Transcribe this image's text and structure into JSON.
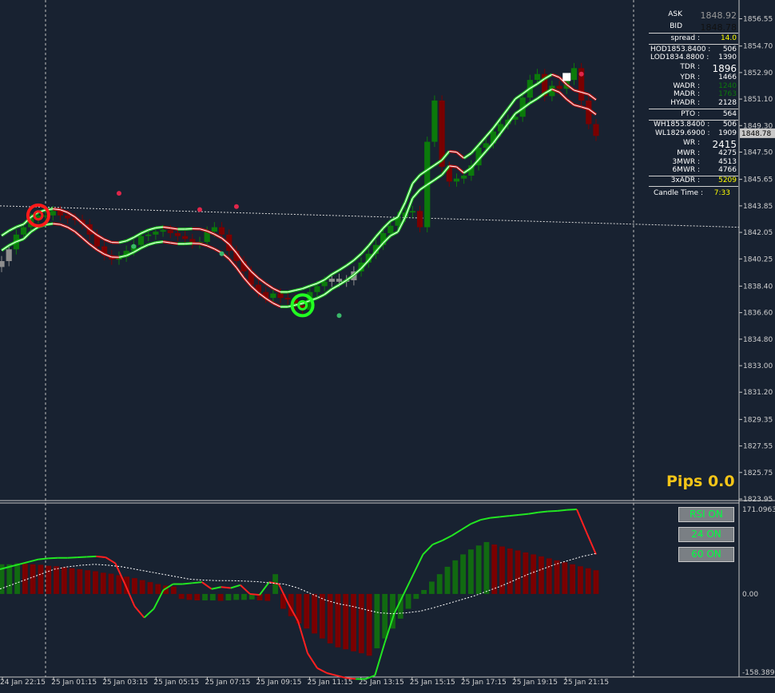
{
  "colors": {
    "background": "#182231",
    "bull_candle": "#0b7a0b",
    "bear_candle": "#7a0000",
    "neutral_candle": "#8e8e8e",
    "channel_green": "#2bd32b",
    "channel_red": "#c01818",
    "pips_text": "#f5c518",
    "button_text": "#00ff40"
  },
  "info_panel": {
    "ask_label": "ASK",
    "ask_value": "1848.92",
    "bid_label": "BID",
    "bid_value": "1848.78",
    "spread_label": "spread :",
    "spread_value": "14.0",
    "hod_label": "HOD1853.8400 :",
    "hod_value": "506",
    "lod_label": "LOD1834.8800 :",
    "lod_value": "1390",
    "tdr_label": "TDR :",
    "tdr_value": "1896",
    "ydr_label": "YDR :",
    "ydr_value": "1466",
    "wadr_label": "WADR :",
    "wadr_value": "1240",
    "madr_label": "MADR :",
    "madr_value": "1763",
    "hyadr_label": "HYADR :",
    "hyadr_value": "2128",
    "pto_label": "PTO :",
    "pto_value": "564",
    "wh_label": "WH1853.8400 :",
    "wh_value": "506",
    "wl_label": "WL1829.6900 :",
    "wl_value": "1909",
    "wr_label": "WR :",
    "wr_value": "2415",
    "mwr_label": "MWR :",
    "mwr_value": "4275",
    "mwr3_label": "3MWR :",
    "mwr3_value": "4513",
    "mwr6_label": "6MWR :",
    "mwr6_value": "4766",
    "xadr_label": "3xADR :",
    "xadr_value": "5209",
    "candle_time_label": "Candle Time :",
    "candle_time_value": "7:33"
  },
  "pips_label": "Pips 0.0",
  "buttons": {
    "rsi": "RSI ON",
    "b24": "24 ON",
    "b60": "60 ON"
  },
  "chart_data": [
    {
      "type": "candlestick",
      "title": "",
      "ylim": [
        1823.95,
        1857.5
      ],
      "y_ticks": [
        "1856.55",
        "1854.70",
        "1852.90",
        "1851.10",
        "1849.30",
        "1847.50",
        "1845.65",
        "1843.85",
        "1842.05",
        "1840.25",
        "1838.40",
        "1836.60",
        "1834.80",
        "1833.00",
        "1831.20",
        "1829.35",
        "1827.55",
        "1825.75",
        "1823.95"
      ],
      "current_price_label": "1848.78",
      "x_ticks": [
        "24 Jan 22:15",
        "25 Jan 01:15",
        "25 Jan 03:15",
        "25 Jan 05:15",
        "25 Jan 07:15",
        "25 Jan 09:15",
        "25 Jan 11:15",
        "25 Jan 13:15",
        "25 Jan 15:15",
        "25 Jan 17:15",
        "25 Jan 19:15",
        "25 Jan 21:15"
      ],
      "close_series": [
        1840.1,
        1840.9,
        1841.9,
        1842.4,
        1843.0,
        1843.2,
        1843.2,
        1843.5,
        1843.2,
        1843.0,
        1842.9,
        1842.6,
        1841.9,
        1841.1,
        1840.5,
        1840.2,
        1840.4,
        1840.8,
        1841.2,
        1841.8,
        1841.9,
        1842.1,
        1842.2,
        1842.0,
        1841.8,
        1841.6,
        1841.3,
        1841.4,
        1842.1,
        1842.4,
        1841.9,
        1840.8,
        1840.1,
        1839.4,
        1838.5,
        1838.0,
        1837.6,
        1837.9,
        1837.6,
        1837.5,
        1837.1,
        1836.8,
        1838.0,
        1838.4,
        1838.7,
        1838.9,
        1838.7,
        1838.8,
        1839.4,
        1840.0,
        1840.6,
        1841.2,
        1842.0,
        1842.5,
        1843.1,
        1843.4,
        1843.5,
        1842.4,
        1848.2,
        1851.0,
        1846.5,
        1845.5,
        1845.7,
        1845.9,
        1846.6,
        1847.8,
        1848.1,
        1848.9,
        1849.4,
        1849.7,
        1849.9,
        1851.2,
        1852.4,
        1852.8,
        1851.3,
        1852.0,
        1851.8,
        1852.4,
        1853.2,
        1851.0,
        1849.4,
        1848.6
      ],
      "markers": [
        {
          "type": "sell-signal-circle",
          "price": 1843.2
        },
        {
          "type": "buy-signal-circle",
          "price": 1837.1
        },
        {
          "type": "last-marker-square",
          "price": 1852.6
        }
      ]
    },
    {
      "type": "bar",
      "title": "",
      "ylim": [
        -158.3897,
        171.09631
      ],
      "y_ticks": [
        "171.09631",
        "0.00",
        "-158.3897"
      ],
      "histogram": [
        60,
        60,
        62,
        61,
        60,
        59,
        57,
        56,
        54,
        52,
        50,
        48,
        46,
        43,
        41,
        38,
        35,
        32,
        28,
        24,
        20,
        17,
        15,
        -10,
        -12,
        -13,
        -13,
        -13,
        -14,
        -13,
        -12,
        -12,
        -11,
        -13,
        -14,
        40,
        -30,
        -45,
        -60,
        -70,
        -80,
        -90,
        -100,
        -108,
        -112,
        -116,
        -120,
        -125,
        -110,
        -90,
        -70,
        -50,
        -30,
        -10,
        8,
        25,
        40,
        55,
        68,
        80,
        90,
        98,
        105,
        100,
        96,
        92,
        88,
        84,
        80,
        76,
        72,
        68,
        64,
        60,
        56,
        52,
        48
      ],
      "rsi_line": [
        50,
        55,
        60,
        65,
        70,
        72,
        73,
        73,
        74,
        75,
        76,
        74,
        62,
        20,
        -25,
        -48,
        -30,
        8,
        20,
        20,
        22,
        24,
        10,
        14,
        12,
        18,
        0,
        -2,
        24,
        20,
        -20,
        -55,
        -120,
        -150,
        -160,
        -165,
        -170,
        -172,
        -172,
        -165,
        -100,
        -40,
        0,
        40,
        80,
        100,
        108,
        118,
        130,
        142,
        150,
        154,
        156,
        158,
        160,
        162,
        165,
        167,
        168,
        170,
        171,
        125,
        80
      ],
      "signal_line": [
        10,
        20,
        30,
        40,
        50,
        55,
        58,
        60,
        58,
        55,
        50,
        45,
        40,
        35,
        30,
        28,
        27,
        27,
        26,
        25,
        22,
        20,
        12,
        0,
        -12,
        -20,
        -25,
        -32,
        -38,
        -40,
        -38,
        -35,
        -28,
        -20,
        -12,
        -4,
        6,
        16,
        28,
        40,
        50,
        60,
        68,
        76,
        82
      ]
    }
  ]
}
